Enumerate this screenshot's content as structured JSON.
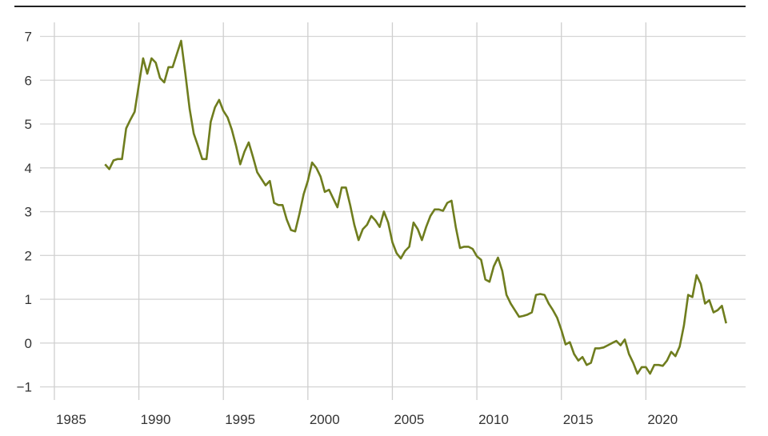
{
  "chart_data": {
    "type": "line",
    "title": "",
    "xlabel": "",
    "ylabel": "",
    "xlim": [
      1984.15,
      2025.9
    ],
    "ylim": [
      -1.3,
      7.32
    ],
    "grid": true,
    "line_color": "#6f7d1e",
    "x_ticks": [
      1985,
      1990,
      1995,
      2000,
      2005,
      2010,
      2015,
      2020
    ],
    "y_ticks": [
      -1,
      0,
      1,
      2,
      3,
      4,
      5,
      6,
      7
    ],
    "x_tick_labels": [
      "1985",
      "1990",
      "1995",
      "2000",
      "2005",
      "2010",
      "2015",
      "2020"
    ],
    "y_tick_labels": [
      "−1",
      "0",
      "1",
      "2",
      "3",
      "4",
      "5",
      "6",
      "7"
    ],
    "series": [
      {
        "x": [
          1988,
          1988.25,
          1988.5,
          1988.75,
          1989,
          1989.25,
          1989.5,
          1989.75,
          1990,
          1990.25,
          1990.5,
          1990.75,
          1991,
          1991.25,
          1991.5,
          1991.75,
          1992,
          1992.25,
          1992.5,
          1992.75,
          1993,
          1993.25,
          1993.5,
          1993.75,
          1994,
          1994.25,
          1994.5,
          1994.75,
          1995,
          1995.25,
          1995.5,
          1995.75,
          1996,
          1996.25,
          1996.5,
          1996.75,
          1997,
          1997.25,
          1997.5,
          1997.75,
          1998,
          1998.25,
          1998.5,
          1998.75,
          1999,
          1999.25,
          1999.5,
          1999.75,
          2000,
          2000.25,
          2000.5,
          2000.75,
          2001,
          2001.25,
          2001.5,
          2001.75,
          2002,
          2002.25,
          2002.5,
          2002.75,
          2003,
          2003.25,
          2003.5,
          2003.75,
          2004,
          2004.25,
          2004.5,
          2004.75,
          2005,
          2005.25,
          2005.5,
          2005.75,
          2006,
          2006.25,
          2006.5,
          2006.75,
          2007,
          2007.25,
          2007.5,
          2007.75,
          2008,
          2008.25,
          2008.5,
          2008.75,
          2009,
          2009.25,
          2009.5,
          2009.75,
          2010,
          2010.25,
          2010.5,
          2010.75,
          2011,
          2011.25,
          2011.5,
          2011.75,
          2012,
          2012.25,
          2012.5,
          2012.75,
          2013,
          2013.25,
          2013.5,
          2013.75,
          2014,
          2014.25,
          2014.5,
          2014.75,
          2015,
          2015.25,
          2015.5,
          2015.75,
          2016,
          2016.25,
          2016.5,
          2016.75,
          2017,
          2017.25,
          2017.5,
          2017.75,
          2018,
          2018.25,
          2018.5,
          2018.75,
          2019,
          2019.25,
          2019.5,
          2019.75,
          2020,
          2020.25,
          2020.5,
          2020.75,
          2021,
          2021.25,
          2021.5,
          2021.75,
          2022,
          2022.25,
          2022.5,
          2022.75,
          2023,
          2023.25,
          2023.5,
          2023.75,
          2024,
          2024.25,
          2024.5,
          2024.75
        ],
        "y": [
          4.08,
          3.97,
          4.17,
          4.2,
          4.2,
          4.9,
          5.1,
          5.28,
          5.9,
          6.5,
          6.15,
          6.5,
          6.4,
          6.05,
          5.95,
          6.3,
          6.3,
          6.6,
          6.9,
          6.15,
          5.35,
          4.78,
          4.5,
          4.2,
          4.2,
          5.05,
          5.38,
          5.55,
          5.3,
          5.15,
          4.87,
          4.5,
          4.08,
          4.37,
          4.58,
          4.25,
          3.9,
          3.75,
          3.6,
          3.7,
          3.2,
          3.15,
          3.15,
          2.82,
          2.58,
          2.55,
          2.95,
          3.4,
          3.7,
          4.12,
          4.0,
          3.8,
          3.45,
          3.5,
          3.3,
          3.1,
          3.55,
          3.55,
          3.15,
          2.7,
          2.35,
          2.6,
          2.7,
          2.9,
          2.8,
          2.65,
          3.0,
          2.75,
          2.3,
          2.05,
          1.93,
          2.1,
          2.2,
          2.75,
          2.6,
          2.35,
          2.65,
          2.9,
          3.05,
          3.05,
          3.02,
          3.2,
          3.25,
          2.65,
          2.17,
          2.2,
          2.2,
          2.15,
          1.98,
          1.9,
          1.45,
          1.4,
          1.75,
          1.95,
          1.65,
          1.1,
          0.9,
          0.75,
          0.6,
          0.62,
          0.65,
          0.7,
          1.1,
          1.12,
          1.1,
          0.9,
          0.75,
          0.58,
          0.3,
          -0.03,
          0.02,
          -0.25,
          -0.4,
          -0.32,
          -0.5,
          -0.45,
          -0.12,
          -0.12,
          -0.1,
          -0.05,
          0.0,
          0.05,
          -0.05,
          0.08,
          -0.25,
          -0.45,
          -0.7,
          -0.55,
          -0.55,
          -0.7,
          -0.5,
          -0.5,
          -0.52,
          -0.4,
          -0.2,
          -0.3,
          -0.08,
          0.4,
          1.1,
          1.05,
          1.55,
          1.35,
          0.9,
          0.98,
          0.7,
          0.75,
          0.85,
          0.45
        ]
      }
    ]
  }
}
